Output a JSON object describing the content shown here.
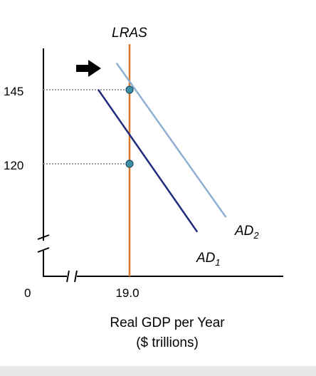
{
  "chart_data": {
    "type": "line",
    "title": "",
    "xlabel_line1": "Real GDP per Year",
    "xlabel_line2": "($ trillions)",
    "ylabel": "",
    "origin_label": "0",
    "x_ticks": [
      {
        "value": 19.0,
        "label": "19.0"
      }
    ],
    "y_ticks": [
      {
        "value": 120,
        "label": "120"
      },
      {
        "value": 145,
        "label": "145"
      }
    ],
    "axis_breaks": {
      "x": true,
      "y": true
    },
    "grid": false,
    "lras": {
      "name": "LRAS",
      "x": 19.0,
      "color": "#d9772b"
    },
    "series": [
      {
        "name": "AD",
        "subscript": "1",
        "color": "#1f2a7c",
        "points": [
          {
            "x": 17.8,
            "y": 145
          },
          {
            "x": 21.6,
            "y": 97
          }
        ]
      },
      {
        "name": "AD",
        "subscript": "2",
        "color": "#8fb0d3",
        "points": [
          {
            "x": 18.5,
            "y": 154
          },
          {
            "x": 22.7,
            "y": 102
          }
        ]
      }
    ],
    "equilibrium_points": [
      {
        "x": 19.0,
        "y": 120,
        "color": "#3f8fa8"
      },
      {
        "x": 19.0,
        "y": 145,
        "color": "#3f8fa8"
      }
    ],
    "shift_arrow": {
      "direction": "right",
      "color": "#000000"
    }
  }
}
